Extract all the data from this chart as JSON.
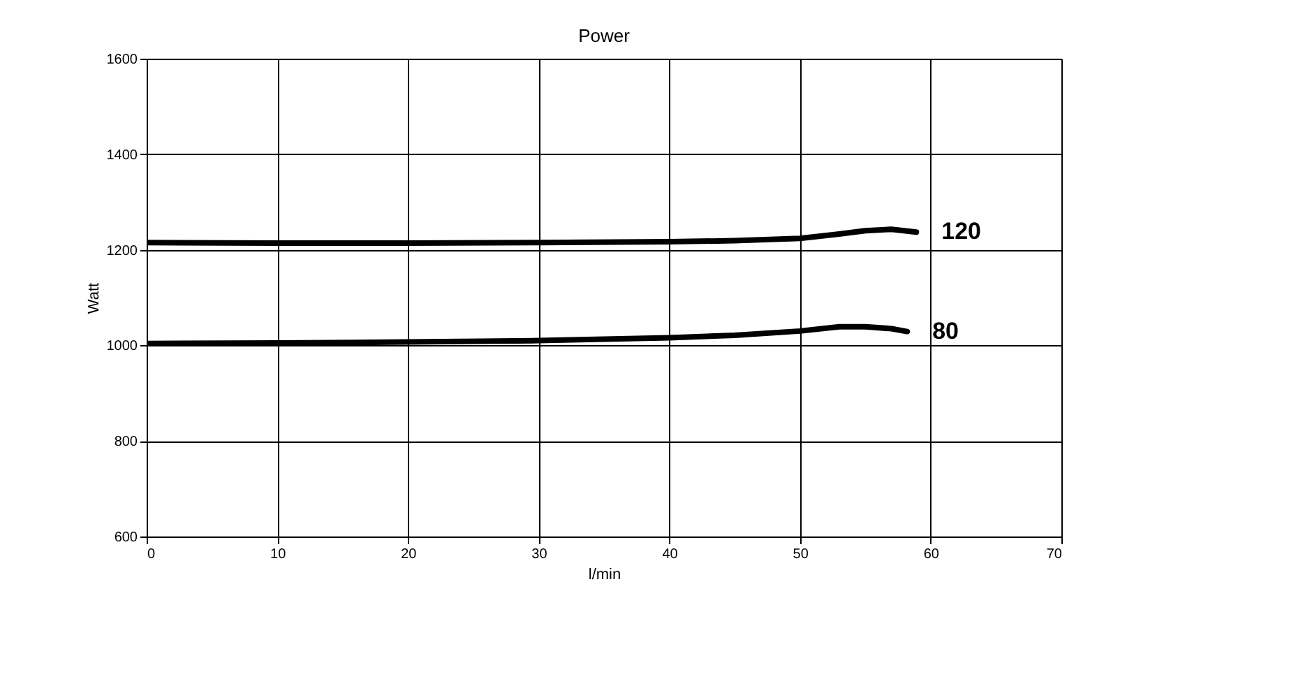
{
  "chart_data": {
    "type": "line",
    "title": "Power",
    "xlabel": "l/min",
    "ylabel": "Watt",
    "xlim": [
      0,
      70
    ],
    "xticks": [
      0,
      10,
      20,
      30,
      40,
      50,
      60,
      70
    ],
    "ylim": [
      600,
      1600
    ],
    "yticks": [
      600,
      800,
      1000,
      1200,
      1400,
      1600
    ],
    "grid": true,
    "line_style": "solid",
    "series": [
      {
        "name": "120",
        "color": "#000000",
        "x": [
          0,
          10,
          20,
          30,
          40,
          45,
          50,
          53,
          55,
          57,
          58.9
        ],
        "values": [
          1215,
          1214,
          1214,
          1215,
          1217,
          1219,
          1224,
          1233,
          1240,
          1243,
          1237
        ]
      },
      {
        "name": "80",
        "color": "#000000",
        "x": [
          0,
          10,
          20,
          30,
          40,
          45,
          50,
          53,
          55,
          57,
          58.2
        ],
        "values": [
          1004,
          1005,
          1007,
          1010,
          1016,
          1021,
          1030,
          1039,
          1039,
          1035,
          1029
        ]
      }
    ]
  }
}
